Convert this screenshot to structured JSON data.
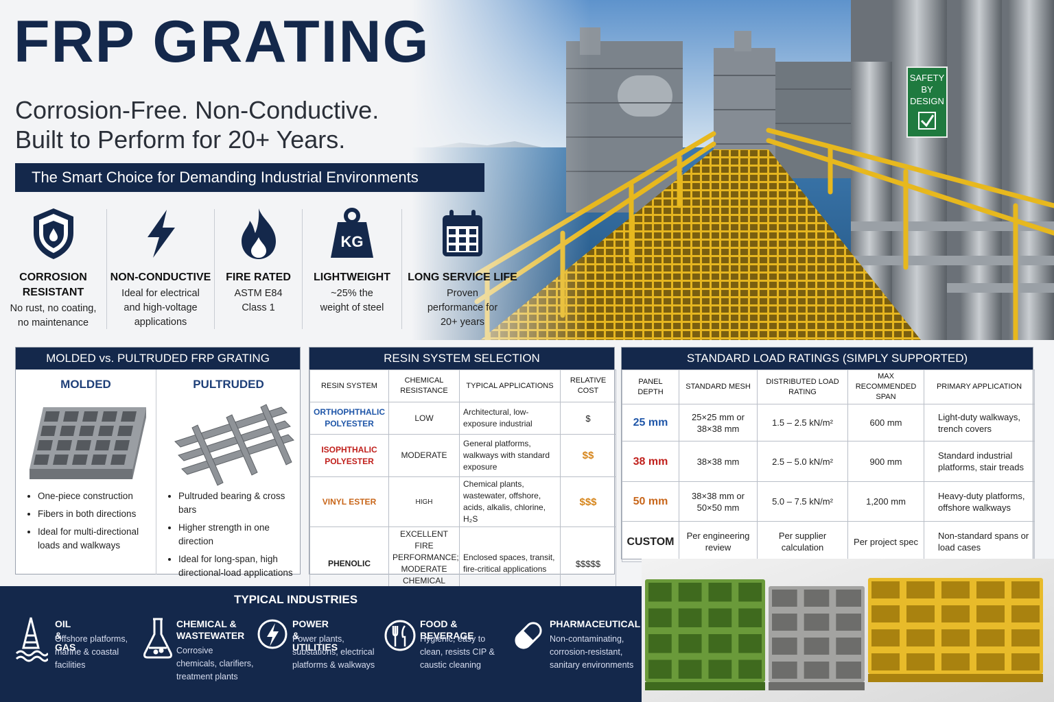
{
  "header": {
    "title": "FRP GRATING",
    "subtitle": [
      "Corrosion-Free. Non-Conductive.",
      "Built to Perform for 20+ Years."
    ],
    "banner": "The Smart Choice for Demanding Industrial Environments"
  },
  "photo": {
    "sign": [
      "SAFETY",
      "BY",
      "DESIGN"
    ]
  },
  "features": [
    {
      "title": "CORROSION RESISTANT",
      "text": "No rust, no coating, no maintenance"
    },
    {
      "title": "NON-CONDUCTIVE",
      "text": "Ideal for electrical and high-voltage applications"
    },
    {
      "title": "FIRE RATED",
      "text": "ASTM E84 Class 1"
    },
    {
      "title": "LIGHTWEIGHT",
      "text": "~25% the weight of steel",
      "icon_text": "KG"
    },
    {
      "title": "LONG SERVICE LIFE",
      "text": "Proven performance for 20+ years"
    }
  ],
  "comparison": {
    "title": "MOLDED vs. PULTRUDED FRP GRATING",
    "columns": [
      {
        "name": "MOLDED",
        "bullets": [
          "One-piece construction",
          "Fibers in both directions",
          "Ideal for multi-directional loads and walkways"
        ]
      },
      {
        "name": "PULTRUDED",
        "bullets": [
          "Pultruded bearing & cross bars",
          "Higher strength in one direction",
          "Ideal for long-span, high directional-load applications"
        ]
      }
    ]
  },
  "resin": {
    "title": "RESIN SYSTEM SELECTION",
    "headers": [
      "RESIN SYSTEM",
      "CHEMICAL RESISTANCE",
      "TYPICAL APPLICATIONS",
      "RELATIVE COST"
    ],
    "rows": [
      [
        "ORTHOPHTHALIC POLYESTER",
        "LOW",
        "Architectural, low-exposure industrial",
        "$"
      ],
      [
        "ISOPHTHALIC POLYESTER",
        "MODERATE",
        "General platforms, walkways with standard exposure",
        "$$"
      ],
      [
        "VINYL ESTER",
        "HIGH",
        "Chemical plants, wastewater, offshore, acids, alkalis, chlorine, H₂S",
        "$$$"
      ],
      [
        "PHENOLIC",
        "EXCELLENT FIRE PERFORMANCE; MODERATE CHEMICAL RESISTANCE",
        "Enclosed spaces, transit, fire-critical applications",
        "$$$$$"
      ]
    ]
  },
  "loads": {
    "title": "STANDARD LOAD RATINGS (SIMPLY SUPPORTED)",
    "headers": [
      "PANEL DEPTH",
      "STANDARD MESH",
      "DISTRIBUTED LOAD RATING",
      "MAX RECOMMENDED SPAN",
      "PRIMARY APPLICATION"
    ],
    "rows": [
      [
        "25 mm",
        "25×25 mm or 38×38 mm",
        "1.5 – 2.5 kN/m²",
        "600 mm",
        "Light-duty walkways, trench covers"
      ],
      [
        "38 mm",
        "38×38 mm",
        "2.5 – 5.0 kN/m²",
        "900 mm",
        "Standard industrial platforms, stair treads"
      ],
      [
        "50 mm",
        "38×38 mm or 50×50 mm",
        "5.0 – 7.5 kN/m²",
        "1,200 mm",
        "Heavy-duty platforms, offshore walkways"
      ],
      [
        "CUSTOM",
        "Per engineering review",
        "Per supplier calculation",
        "Per project spec",
        "Non-standard spans or load cases"
      ]
    ]
  },
  "industries": {
    "title": "TYPICAL INDUSTRIES",
    "items": [
      {
        "name": "OIL & GAS",
        "text": "Offshore platforms, marine & coastal facilities"
      },
      {
        "name": "CHEMICAL & WASTEWATER",
        "text": "Corrosive chemicals, clarifiers, treatment plants"
      },
      {
        "name": "POWER & UTILITIES",
        "text": "Power plants, substations, electrical platforms & walkways"
      },
      {
        "name": "FOOD & BEVERAGE",
        "text": "Hygienic, easy to clean, resists CIP & caustic cleaning"
      },
      {
        "name": "PHARMACEUTICAL",
        "text": "Non-contaminating, corrosion-resistant, sanitary environments"
      }
    ]
  }
}
